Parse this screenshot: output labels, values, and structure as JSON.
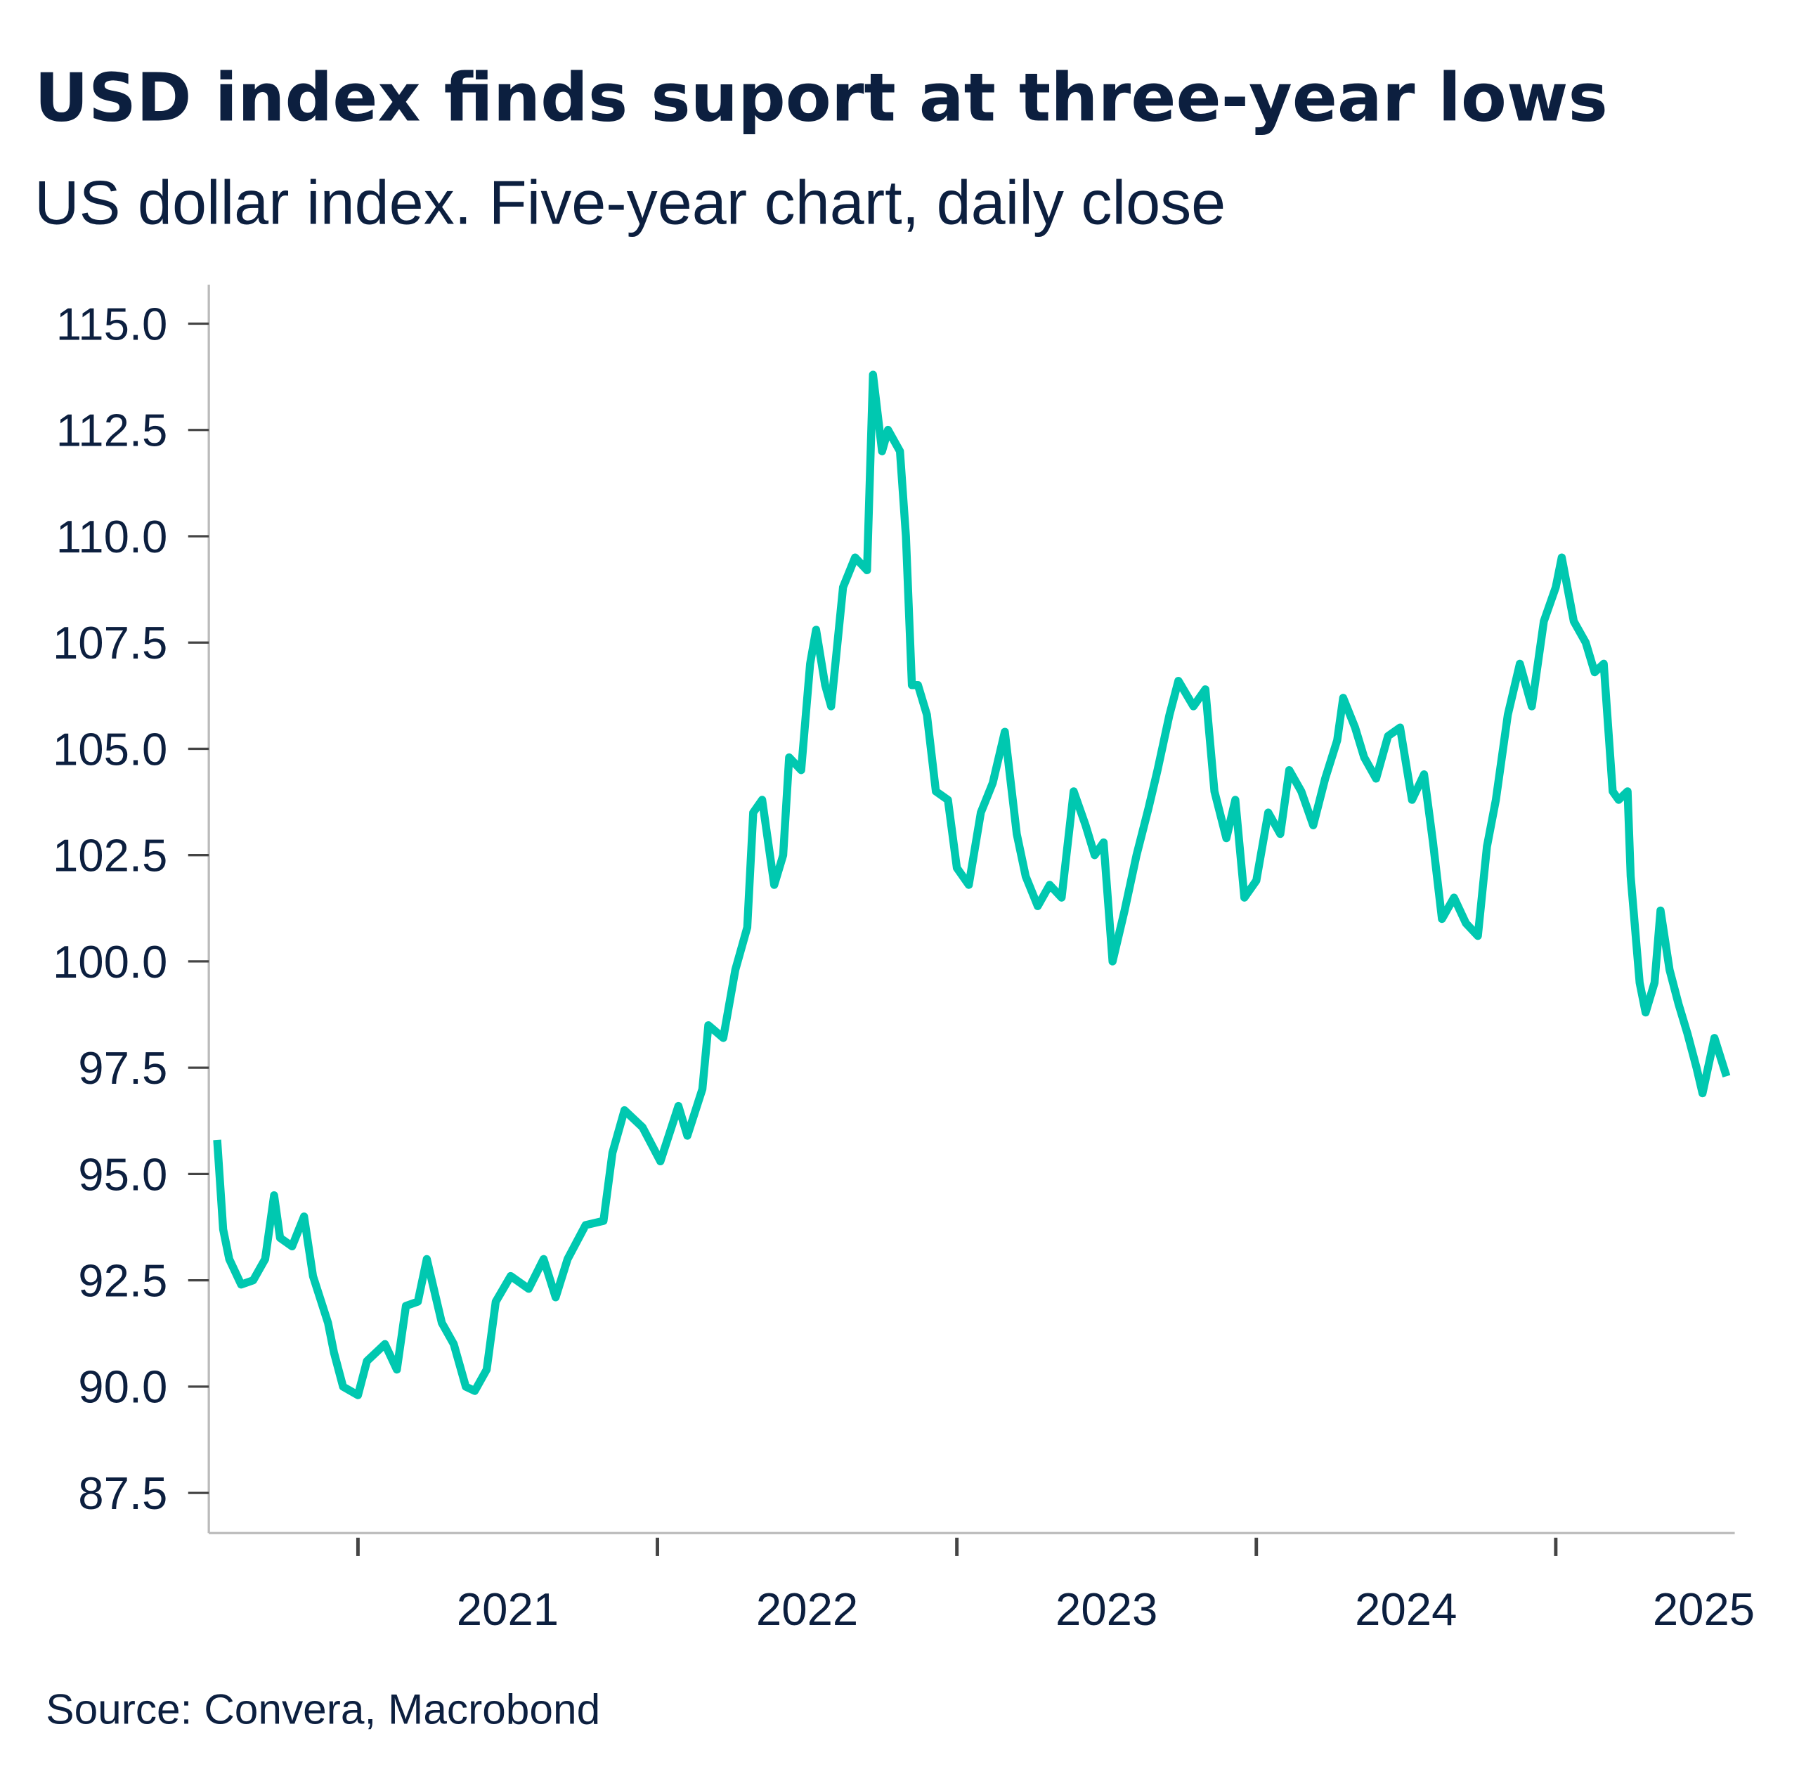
{
  "chart_data": {
    "type": "line",
    "title": "USD index finds suport at three-year lows",
    "subtitle": "US dollar index. Five-year chart, daily close",
    "source": "Source: Convera, Macrobond",
    "xlabel": "",
    "ylabel": "",
    "ylim": [
      86.5,
      116
    ],
    "yticks": [
      "87.5",
      "90.0",
      "92.5",
      "95.0",
      "97.5",
      "100.0",
      "102.5",
      "105.0",
      "107.5",
      "110.0",
      "112.5",
      "115.0"
    ],
    "xticks": [
      "2021",
      "2022",
      "2023",
      "2024",
      "2025"
    ],
    "grid": false,
    "line_color": "#00c8b0",
    "series": [
      {
        "x": [
          2020.53,
          2020.55,
          2020.57,
          2020.61,
          2020.65,
          2020.69,
          2020.72,
          2020.74,
          2020.78,
          2020.82,
          2020.85,
          2020.9,
          2020.92,
          2020.95,
          2021.0,
          2021.03,
          2021.09,
          2021.13,
          2021.16,
          2021.2,
          2021.23,
          2021.28,
          2021.32,
          2021.36,
          2021.39,
          2021.43,
          2021.46,
          2021.51,
          2021.57,
          2021.62,
          2021.66,
          2021.7,
          2021.76,
          2021.82,
          2021.85,
          2021.89,
          2021.95,
          2022.01,
          2022.07,
          2022.1,
          2022.15,
          2022.17,
          2022.22,
          2022.26,
          2022.3,
          2022.32,
          2022.35,
          2022.39,
          2022.42,
          2022.44,
          2022.48,
          2022.51,
          2022.53,
          2022.56,
          2022.58,
          2022.62,
          2022.66,
          2022.7,
          2022.72,
          2022.75,
          2022.77,
          2022.81,
          2022.83,
          2022.85,
          2022.87,
          2022.9,
          2022.93,
          2022.97,
          2023.0,
          2023.04,
          2023.08,
          2023.12,
          2023.16,
          2023.2,
          2023.23,
          2023.27,
          2023.31,
          2023.35,
          2023.39,
          2023.43,
          2023.46,
          2023.49,
          2023.52,
          2023.56,
          2023.6,
          2023.64,
          2023.67,
          2023.71,
          2023.74,
          2023.79,
          2023.83,
          2023.86,
          2023.9,
          2023.93,
          2023.96,
          2024.0,
          2024.04,
          2024.08,
          2024.11,
          2024.15,
          2024.19,
          2024.23,
          2024.27,
          2024.29,
          2024.33,
          2024.36,
          2024.4,
          2024.44,
          2024.48,
          2024.52,
          2024.56,
          2024.59,
          2024.62,
          2024.66,
          2024.7,
          2024.74,
          2024.77,
          2024.8,
          2024.84,
          2024.88,
          2024.92,
          2024.96,
          2025.0,
          2025.02,
          2025.06,
          2025.1,
          2025.13,
          2025.16,
          2025.19,
          2025.21,
          2025.24,
          2025.25,
          2025.28,
          2025.3,
          2025.33,
          2025.35,
          2025.38,
          2025.41,
          2025.44,
          2025.47,
          2025.49,
          2025.53,
          2025.57
        ],
        "values": [
          95.8,
          93.7,
          93.0,
          92.4,
          92.5,
          93.0,
          94.5,
          93.5,
          93.3,
          94.0,
          92.6,
          91.5,
          90.8,
          90.0,
          89.8,
          90.6,
          91.0,
          90.4,
          91.9,
          92.0,
          93.0,
          91.5,
          91.0,
          90.0,
          89.9,
          90.4,
          92.0,
          92.6,
          92.3,
          93.0,
          92.1,
          93.0,
          93.8,
          93.9,
          95.5,
          96.5,
          96.1,
          95.3,
          96.6,
          95.9,
          97.0,
          98.5,
          98.2,
          99.8,
          100.8,
          103.5,
          103.8,
          101.8,
          102.5,
          104.8,
          104.5,
          107.0,
          107.8,
          106.5,
          106.0,
          108.8,
          109.5,
          109.2,
          113.8,
          112.0,
          112.5,
          112.0,
          110.0,
          106.5,
          106.5,
          105.8,
          104.0,
          103.8,
          102.2,
          101.8,
          103.5,
          104.2,
          105.4,
          103.0,
          102.0,
          101.3,
          101.8,
          101.5,
          104.0,
          103.2,
          102.5,
          102.8,
          100.0,
          101.2,
          102.5,
          103.6,
          104.5,
          105.8,
          106.6,
          106.0,
          106.4,
          104.0,
          102.9,
          103.8,
          101.5,
          101.9,
          103.5,
          103.0,
          104.5,
          104.0,
          103.2,
          104.3,
          105.2,
          106.2,
          105.5,
          104.8,
          104.3,
          105.3,
          105.5,
          103.8,
          104.4,
          102.8,
          101.0,
          101.5,
          100.9,
          100.6,
          102.7,
          103.8,
          105.8,
          107.0,
          106.0,
          108.0,
          108.8,
          109.5,
          108.0,
          107.5,
          106.8,
          107.0,
          104.0,
          103.8,
          104.0,
          102.0,
          99.5,
          98.8,
          99.5,
          101.2,
          99.8,
          99.0,
          98.3,
          97.5,
          96.9,
          98.2,
          97.3
        ]
      }
    ]
  }
}
